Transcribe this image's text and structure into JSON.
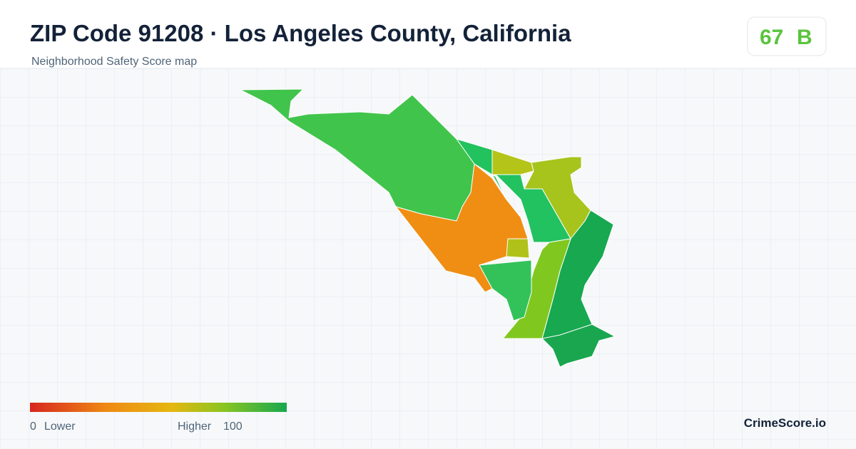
{
  "header": {
    "title": "ZIP Code 91208 · Los Angeles County, California",
    "subtitle": "Neighborhood Safety Score map"
  },
  "score": {
    "value": "67",
    "grade": "B"
  },
  "legend": {
    "min": "0",
    "min_label": "Lower",
    "max_label": "Higher",
    "max": "100"
  },
  "brand": "CrimeScore.io"
}
